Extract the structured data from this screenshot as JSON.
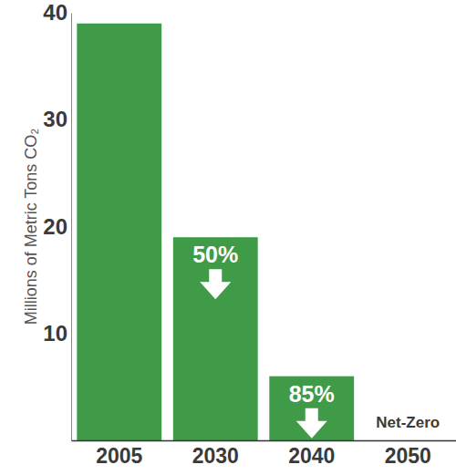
{
  "chart_data": {
    "type": "bar",
    "y_label": "Millions of Metric Tons CO₂",
    "categories": [
      "2005",
      "2030",
      "2040",
      "2050"
    ],
    "values": [
      39,
      19,
      6,
      0
    ],
    "color": "#3f9b48",
    "ylim": [
      0,
      40
    ],
    "yticks": [
      10,
      20,
      30,
      40
    ],
    "grid": false,
    "annotations": [
      {
        "text": "50%",
        "category": "2030"
      },
      {
        "text": "85%",
        "category": "2040"
      },
      {
        "text": "Net-Zero",
        "category": "2050"
      }
    ]
  }
}
